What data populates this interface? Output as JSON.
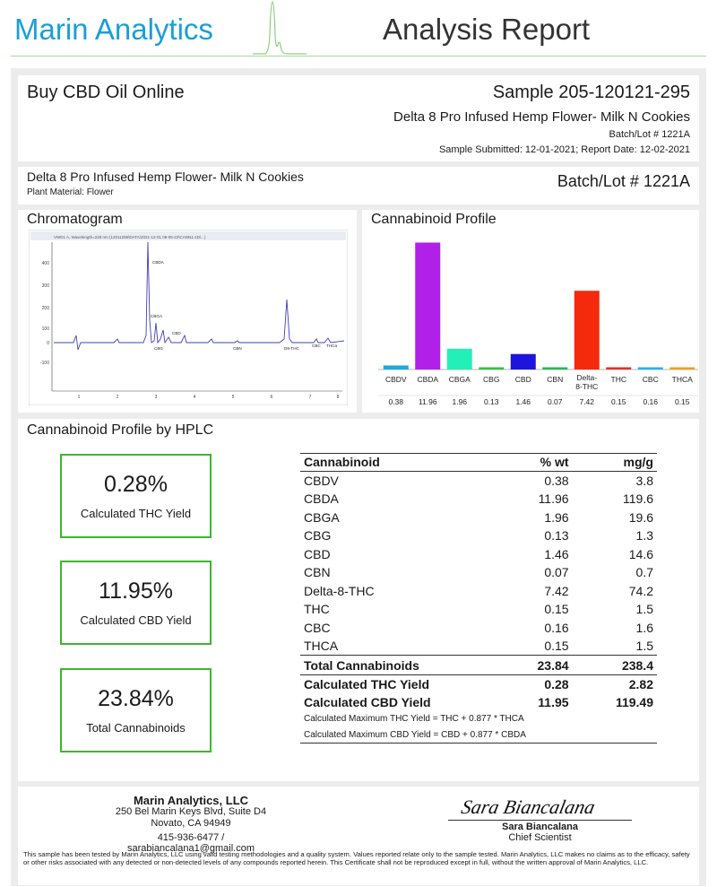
{
  "header": {
    "brand": "Marin Analytics",
    "title": "Analysis Report"
  },
  "sample_info": {
    "client": "Buy CBD Oil Online",
    "sample": "Sample 205-120121-295",
    "product": "Delta 8 Pro Infused Hemp Flower- Milk N Cookies",
    "batch": "Batch/Lot # 1221A",
    "dates": "Sample Submitted: 12-01-2021;  Report Date: 12-02-2021"
  },
  "product_info": {
    "name": "Delta 8 Pro Infused Hemp Flower- Milk N Cookies",
    "plant": "Plant Material: Flower",
    "batch": "Batch/Lot # 1221A"
  },
  "chromatogram": {
    "title": "Chromatogram",
    "header_text": "VWD1 A, Wavelength=228 nm (12011295\\DATA\\2021-12-01 09-05-22\\CANN1-1D\\...)",
    "y_ticks": [
      "400",
      "300",
      "200",
      "100",
      "0",
      "-100"
    ],
    "x_ticks": [
      "1",
      "2",
      "3",
      "4",
      "5",
      "6",
      "7",
      "8"
    ],
    "peak_labels": [
      "CBDA",
      "CBGA",
      "CBG",
      "CBD",
      "CBN",
      "D8-THC",
      "CBC",
      "THCa"
    ]
  },
  "chart_data": {
    "type": "bar",
    "title": "Cannabinoid Profile",
    "categories": [
      "CBDV",
      "CBDA",
      "CBGA",
      "CBG",
      "CBD",
      "CBN",
      "Delta-8-THC",
      "THC",
      "CBC",
      "THCA"
    ],
    "values": [
      0.38,
      11.96,
      1.96,
      0.13,
      1.46,
      0.07,
      7.42,
      0.15,
      0.16,
      0.15
    ],
    "value_labels": [
      "0.38",
      "11.96",
      "1.96",
      "0.13",
      "1.46",
      "0.07",
      "7.42",
      "0.15",
      "0.16",
      "0.15"
    ],
    "colors": [
      "#1fa7e0",
      "#b020e8",
      "#22f0b8",
      "#36c236",
      "#1c16dd",
      "#26b850",
      "#f52a0c",
      "#ee2a2a",
      "#2ab0e8",
      "#f0a020"
    ],
    "ylim": [
      0,
      12
    ],
    "grid": false,
    "legend": "none"
  },
  "hplc": {
    "title": "Cannabinoid Profile by HPLC",
    "yields": [
      {
        "value": "0.28%",
        "label": "Calculated THC Yield"
      },
      {
        "value": "11.95%",
        "label": "Calculated CBD Yield"
      },
      {
        "value": "23.84%",
        "label": "Total Cannabinoids"
      }
    ],
    "table_headers": [
      "Cannabinoid",
      "% wt",
      "mg/g"
    ],
    "rows": [
      [
        "CBDV",
        "0.38",
        "3.8"
      ],
      [
        "CBDA",
        "11.96",
        "119.6"
      ],
      [
        "CBGA",
        "1.96",
        "19.6"
      ],
      [
        "CBG",
        "0.13",
        "1.3"
      ],
      [
        "CBD",
        "1.46",
        "14.6"
      ],
      [
        "CBN",
        "0.07",
        "0.7"
      ],
      [
        "Delta-8-THC",
        "7.42",
        "74.2"
      ],
      [
        "THC",
        "0.15",
        "1.5"
      ],
      [
        "CBC",
        "0.16",
        "1.6"
      ],
      [
        "THCA",
        "0.15",
        "1.5"
      ]
    ],
    "total": [
      "Total Cannabinoids",
      "23.84",
      "238.4"
    ],
    "thc_yield": [
      "Calculated THC Yield",
      "0.28",
      "2.82"
    ],
    "cbd_yield": [
      "Calculated CBD Yield",
      "11.95",
      "119.49"
    ],
    "formula_thc": "Calculated Maximum THC Yield = THC + 0.877 * THCA",
    "formula_cbd": "Calculated Maximum CBD Yield = CBD + 0.877 * CBDA"
  },
  "footer": {
    "lab_name": "Marin Analytics, LLC",
    "address1": "250 Bel Marin Keys Blvd, Suite D4",
    "address2": "Novato, CA 94949",
    "contact": "415-936-6477 / sarabiancalana1@gmail.com",
    "signature": "Sara Biancalana",
    "signer_name": "Sara Biancalana",
    "signer_role": "Chief Scientist",
    "disclaimer": "This sample has been tested by Marin Analytics, LLC using valid testing methodologies and a quality system.  Values reported relate only to the sample tested.  Marin Analytics, LLC makes no claims as to the efficacy, safety or other risks associated with any detected or non-detected levels of any compounds reported herein.  This Certificate shall not be reproduced except in full, without the written approval of Marin Analytics, LLC."
  }
}
